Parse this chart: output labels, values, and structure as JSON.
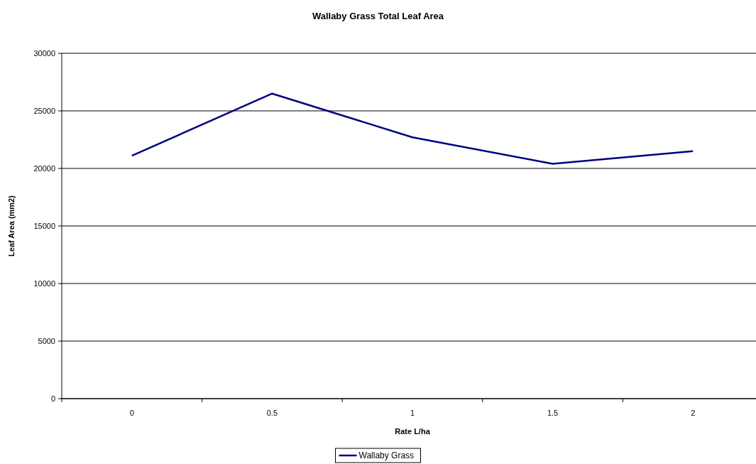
{
  "chart_data": {
    "type": "line",
    "title": "Wallaby Grass Total Leaf Area",
    "xlabel": "Rate L/ha",
    "ylabel": "Leaf Area (mm2)",
    "categories": [
      "0",
      "0.5",
      "1",
      "1.5",
      "2"
    ],
    "series": [
      {
        "name": "Wallaby Grass",
        "color": "#000080",
        "values": [
          21100,
          26500,
          22700,
          20400,
          21500
        ]
      }
    ],
    "ylim": [
      0,
      30000
    ],
    "yticks": [
      0,
      5000,
      10000,
      15000,
      20000,
      25000,
      30000
    ],
    "grid": "y",
    "legend": "bottom",
    "marker": "none",
    "line_style": "solid"
  }
}
